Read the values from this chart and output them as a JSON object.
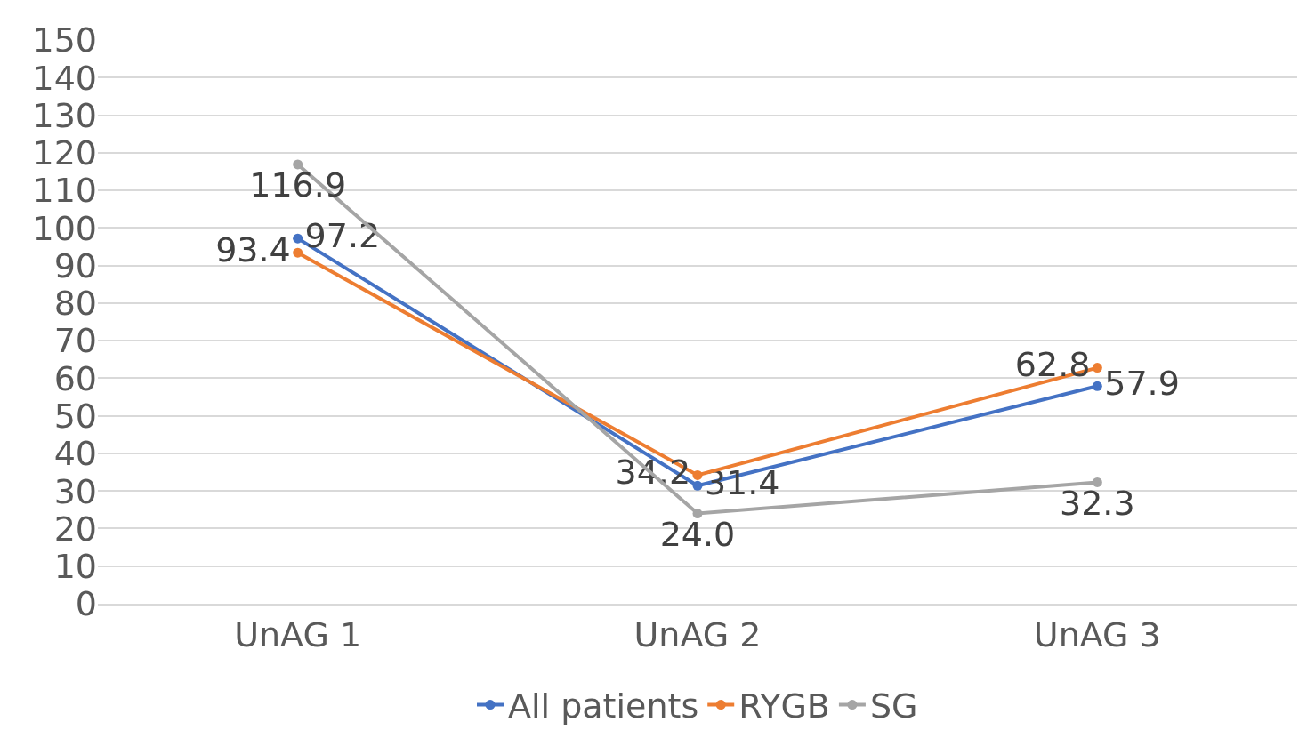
{
  "chart_data": {
    "type": "line",
    "categories": [
      "UnAG 1",
      "UnAG 2",
      "UnAG 3"
    ],
    "series": [
      {
        "name": "All patients",
        "color": "#4472c4",
        "values": [
          97.2,
          31.4,
          57.9
        ],
        "value_labels": [
          "97.2",
          "31.4",
          "57.9"
        ]
      },
      {
        "name": "RYGB",
        "color": "#ed7d31",
        "values": [
          93.4,
          34.2,
          62.8
        ],
        "value_labels": [
          "93.4",
          "34.2",
          "62.8"
        ]
      },
      {
        "name": "SG",
        "color": "#a5a5a5",
        "values": [
          116.9,
          24.0,
          32.3
        ],
        "value_labels": [
          "116.9",
          "24.0",
          "32.3"
        ]
      }
    ],
    "ylim": [
      0,
      150
    ],
    "yticks": [
      0,
      10,
      20,
      30,
      40,
      50,
      60,
      70,
      80,
      90,
      100,
      110,
      120,
      130,
      140,
      150
    ],
    "grid": "y",
    "legend": "bottom",
    "marker": "circle",
    "line_style": "solid"
  }
}
